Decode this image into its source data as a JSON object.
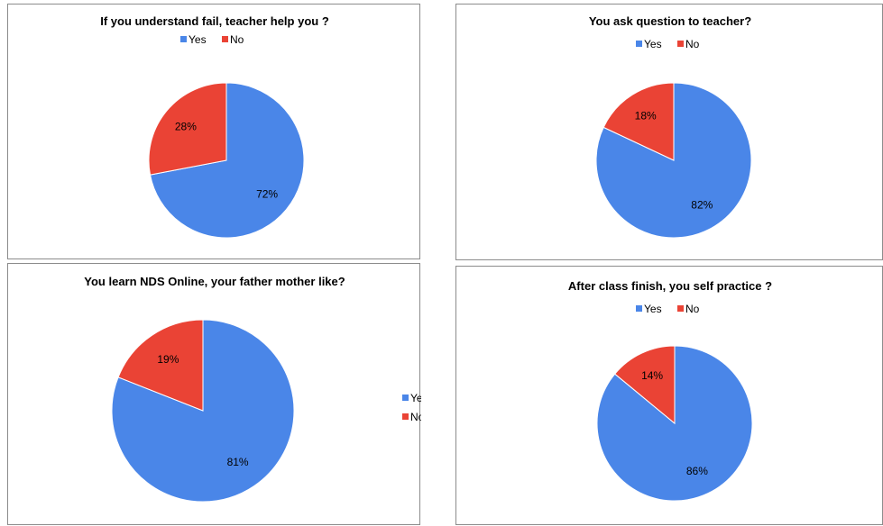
{
  "colors": {
    "yes": "#4a86e8",
    "no": "#ea4335"
  },
  "chart_data": [
    {
      "type": "pie",
      "title": "If you understand fail, teacher help you ?",
      "labels": [
        "Yes",
        "No"
      ],
      "values": [
        72,
        28
      ],
      "value_labels": [
        "72%",
        "28%"
      ],
      "legend_position": "top"
    },
    {
      "type": "pie",
      "title": "You ask question to teacher?",
      "labels": [
        "Yes",
        "No"
      ],
      "values": [
        82,
        18
      ],
      "value_labels": [
        "82%",
        "18%"
      ],
      "legend_position": "top"
    },
    {
      "type": "pie",
      "title": "You learn NDS Online, your father mother like?",
      "labels": [
        "Yes",
        "No"
      ],
      "values": [
        81,
        19
      ],
      "value_labels": [
        "81%",
        "19%"
      ],
      "legend_position": "right"
    },
    {
      "type": "pie",
      "title": "After class finish, you self practice ?",
      "labels": [
        "Yes",
        "No"
      ],
      "values": [
        86,
        14
      ],
      "value_labels": [
        "86%",
        "14%"
      ],
      "legend_position": "top"
    }
  ]
}
